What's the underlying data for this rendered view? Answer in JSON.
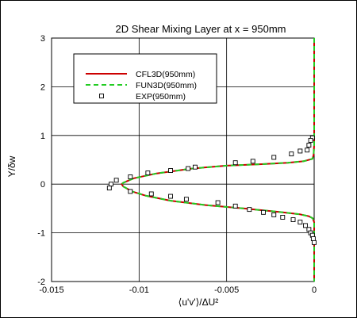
{
  "chart_data": {
    "type": "line",
    "title": "2D Shear Mixing Layer at x = 950mm",
    "xlabel": "⟨u'v'⟩/ΔU²",
    "ylabel": "Y/δw",
    "xlim": [
      -0.015,
      0
    ],
    "ylim": [
      -2,
      3
    ],
    "x_ticks": [
      "-0.015",
      "-0.01",
      "-0.005",
      "0"
    ],
    "y_ticks": [
      "-2",
      "-1",
      "0",
      "1",
      "2",
      "3"
    ],
    "x_tick_values": [
      -0.015,
      -0.01,
      -0.005,
      0
    ],
    "y_tick_values": [
      -2,
      -1,
      0,
      1,
      2,
      3
    ],
    "grid": true,
    "legend_position": "top-left",
    "series": [
      {
        "name": "CFL3D(950mm)",
        "style": "solid",
        "color": "#cc0000",
        "points": [
          [
            0,
            3.0
          ],
          [
            0,
            2.0
          ],
          [
            0,
            1.2
          ],
          [
            0,
            0.8
          ],
          [
            -3e-05,
            0.6
          ],
          [
            -0.0001,
            0.52
          ],
          [
            -0.0006,
            0.47
          ],
          [
            -0.0015,
            0.44
          ],
          [
            -0.003,
            0.41
          ],
          [
            -0.005,
            0.38
          ],
          [
            -0.007,
            0.32
          ],
          [
            -0.009,
            0.22
          ],
          [
            -0.0103,
            0.12
          ],
          [
            -0.0109,
            0.03
          ],
          [
            -0.011,
            0.0
          ],
          [
            -0.0109,
            -0.05
          ],
          [
            -0.0104,
            -0.15
          ],
          [
            -0.0096,
            -0.24
          ],
          [
            -0.0082,
            -0.34
          ],
          [
            -0.0062,
            -0.43
          ],
          [
            -0.004,
            -0.5
          ],
          [
            -0.002,
            -0.57
          ],
          [
            -0.0008,
            -0.62
          ],
          [
            -0.0003,
            -0.66
          ],
          [
            -8e-05,
            -0.7
          ],
          [
            0,
            -0.78
          ],
          [
            0,
            -1.2
          ],
          [
            0,
            -2.0
          ]
        ]
      },
      {
        "name": "FUN3D(950mm)",
        "style": "dashed",
        "color": "#22cc22",
        "points": [
          [
            0,
            3.0
          ],
          [
            0,
            2.0
          ],
          [
            0,
            1.2
          ],
          [
            0,
            0.8
          ],
          [
            -3e-05,
            0.6
          ],
          [
            -0.0001,
            0.52
          ],
          [
            -0.0006,
            0.47
          ],
          [
            -0.0015,
            0.44
          ],
          [
            -0.003,
            0.41
          ],
          [
            -0.005,
            0.38
          ],
          [
            -0.007,
            0.32
          ],
          [
            -0.009,
            0.22
          ],
          [
            -0.0103,
            0.12
          ],
          [
            -0.0109,
            0.03
          ],
          [
            -0.011,
            0.0
          ],
          [
            -0.0109,
            -0.05
          ],
          [
            -0.0104,
            -0.15
          ],
          [
            -0.0096,
            -0.24
          ],
          [
            -0.0082,
            -0.34
          ],
          [
            -0.0062,
            -0.43
          ],
          [
            -0.004,
            -0.5
          ],
          [
            -0.002,
            -0.57
          ],
          [
            -0.0008,
            -0.62
          ],
          [
            -0.0003,
            -0.66
          ],
          [
            -8e-05,
            -0.7
          ],
          [
            0,
            -0.78
          ],
          [
            0,
            -1.2
          ],
          [
            0,
            -2.0
          ]
        ]
      },
      {
        "name": "EXP(950mm)",
        "style": "markers",
        "color": "#000000",
        "points": [
          [
            -0.0001,
            0.95
          ],
          [
            -0.0002,
            0.9
          ],
          [
            -0.0003,
            0.8
          ],
          [
            -0.0004,
            0.7
          ],
          [
            -0.0008,
            0.68
          ],
          [
            -0.0013,
            0.62
          ],
          [
            -0.0023,
            0.55
          ],
          [
            -0.0035,
            0.47
          ],
          [
            -0.0045,
            0.44
          ],
          [
            -0.0068,
            0.35
          ],
          [
            -0.0072,
            0.32
          ],
          [
            -0.0082,
            0.28
          ],
          [
            -0.0095,
            0.23
          ],
          [
            -0.0105,
            0.15
          ],
          [
            -0.0113,
            0.08
          ],
          [
            -0.0116,
            0.0
          ],
          [
            -0.0117,
            -0.08
          ],
          [
            -0.0105,
            -0.15
          ],
          [
            -0.0093,
            -0.2
          ],
          [
            -0.0082,
            -0.25
          ],
          [
            -0.0073,
            -0.31
          ],
          [
            -0.0055,
            -0.38
          ],
          [
            -0.0045,
            -0.45
          ],
          [
            -0.0037,
            -0.52
          ],
          [
            -0.0029,
            -0.58
          ],
          [
            -0.0023,
            -0.63
          ],
          [
            -0.0018,
            -0.68
          ],
          [
            -0.0012,
            -0.73
          ],
          [
            -0.0008,
            -0.78
          ],
          [
            -0.0005,
            -0.85
          ],
          [
            -0.0003,
            -0.93
          ],
          [
            -0.0002,
            -1.0
          ],
          [
            -0.0001,
            -1.05
          ],
          [
            -5e-05,
            -1.12
          ],
          [
            0,
            -1.2
          ]
        ]
      }
    ]
  }
}
